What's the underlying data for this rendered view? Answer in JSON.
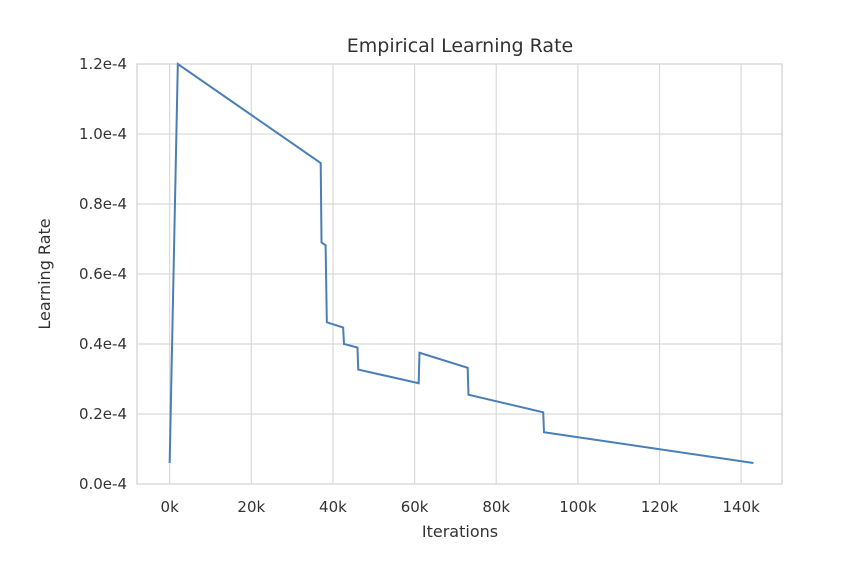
{
  "chart_data": {
    "type": "line",
    "title": "Empirical Learning Rate",
    "xlabel": "Iterations",
    "ylabel": "Learning Rate",
    "xlim": [
      -8000,
      150000
    ],
    "ylim": [
      0,
      0.00012
    ],
    "x_ticks": [
      0,
      20000,
      40000,
      60000,
      80000,
      100000,
      120000,
      140000
    ],
    "x_tick_labels": [
      "0k",
      "20k",
      "40k",
      "60k",
      "80k",
      "100k",
      "120k",
      "140k"
    ],
    "y_ticks": [
      0,
      2e-05,
      4e-05,
      6e-05,
      8e-05,
      0.0001,
      0.00012
    ],
    "y_tick_labels": [
      "0.0e-4",
      "0.2e-4",
      "0.4e-4",
      "0.6e-4",
      "0.8e-4",
      "1.0e-4",
      "1.2e-4"
    ],
    "grid": true,
    "legend": "none",
    "series": [
      {
        "color": "#4a7fb5",
        "x": [
          0,
          2000,
          37000,
          37200,
          38200,
          38500,
          42500,
          42700,
          46000,
          46200,
          61000,
          61200,
          73000,
          73200,
          91500,
          91700,
          143000
        ],
        "y": [
          6e-06,
          0.00012,
          9.17e-05,
          6.9e-05,
          6.82e-05,
          4.62e-05,
          4.47e-05,
          4e-05,
          3.9e-05,
          3.27e-05,
          2.88e-05,
          3.75e-05,
          3.32e-05,
          2.55e-05,
          2.05e-05,
          1.48e-05,
          6e-06
        ]
      }
    ]
  }
}
